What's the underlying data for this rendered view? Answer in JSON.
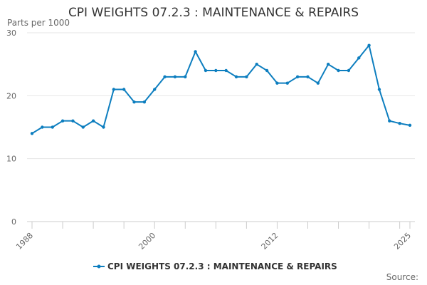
{
  "chart_data": {
    "type": "line",
    "title": "CPI WEIGHTS 07.2.3 : MAINTENANCE & REPAIRS",
    "y_unit_label": "Parts per 1000",
    "xlabel": "",
    "ylabel": "",
    "x": [
      1988,
      1989,
      1990,
      1991,
      1992,
      1993,
      1994,
      1995,
      1996,
      1997,
      1998,
      1999,
      2000,
      2001,
      2002,
      2003,
      2004,
      2005,
      2006,
      2007,
      2008,
      2009,
      2010,
      2011,
      2012,
      2013,
      2014,
      2015,
      2016,
      2017,
      2018,
      2019,
      2020,
      2021,
      2022,
      2023,
      2024,
      2025
    ],
    "xlim": [
      1988,
      2025
    ],
    "ylim": [
      0,
      30
    ],
    "x_ticks": [
      "1988",
      "2000",
      "2012",
      "2025"
    ],
    "y_ticks": [
      "0",
      "10",
      "20",
      "30"
    ],
    "grid": "horizontal",
    "legend_position": "bottom",
    "series": [
      {
        "name": "CPI WEIGHTS 07.2.3 : MAINTENANCE & REPAIRS",
        "color": "#0d7ebf",
        "values": [
          14,
          15,
          15,
          16,
          16,
          15,
          16,
          15,
          21,
          21,
          19,
          19,
          21,
          23,
          23,
          23,
          27,
          24,
          24,
          24,
          23,
          23,
          25,
          24,
          22,
          22,
          23,
          23,
          22,
          25,
          24,
          24,
          26,
          28,
          21,
          16,
          15.6,
          15.3
        ]
      }
    ]
  },
  "source_label": "Source:"
}
